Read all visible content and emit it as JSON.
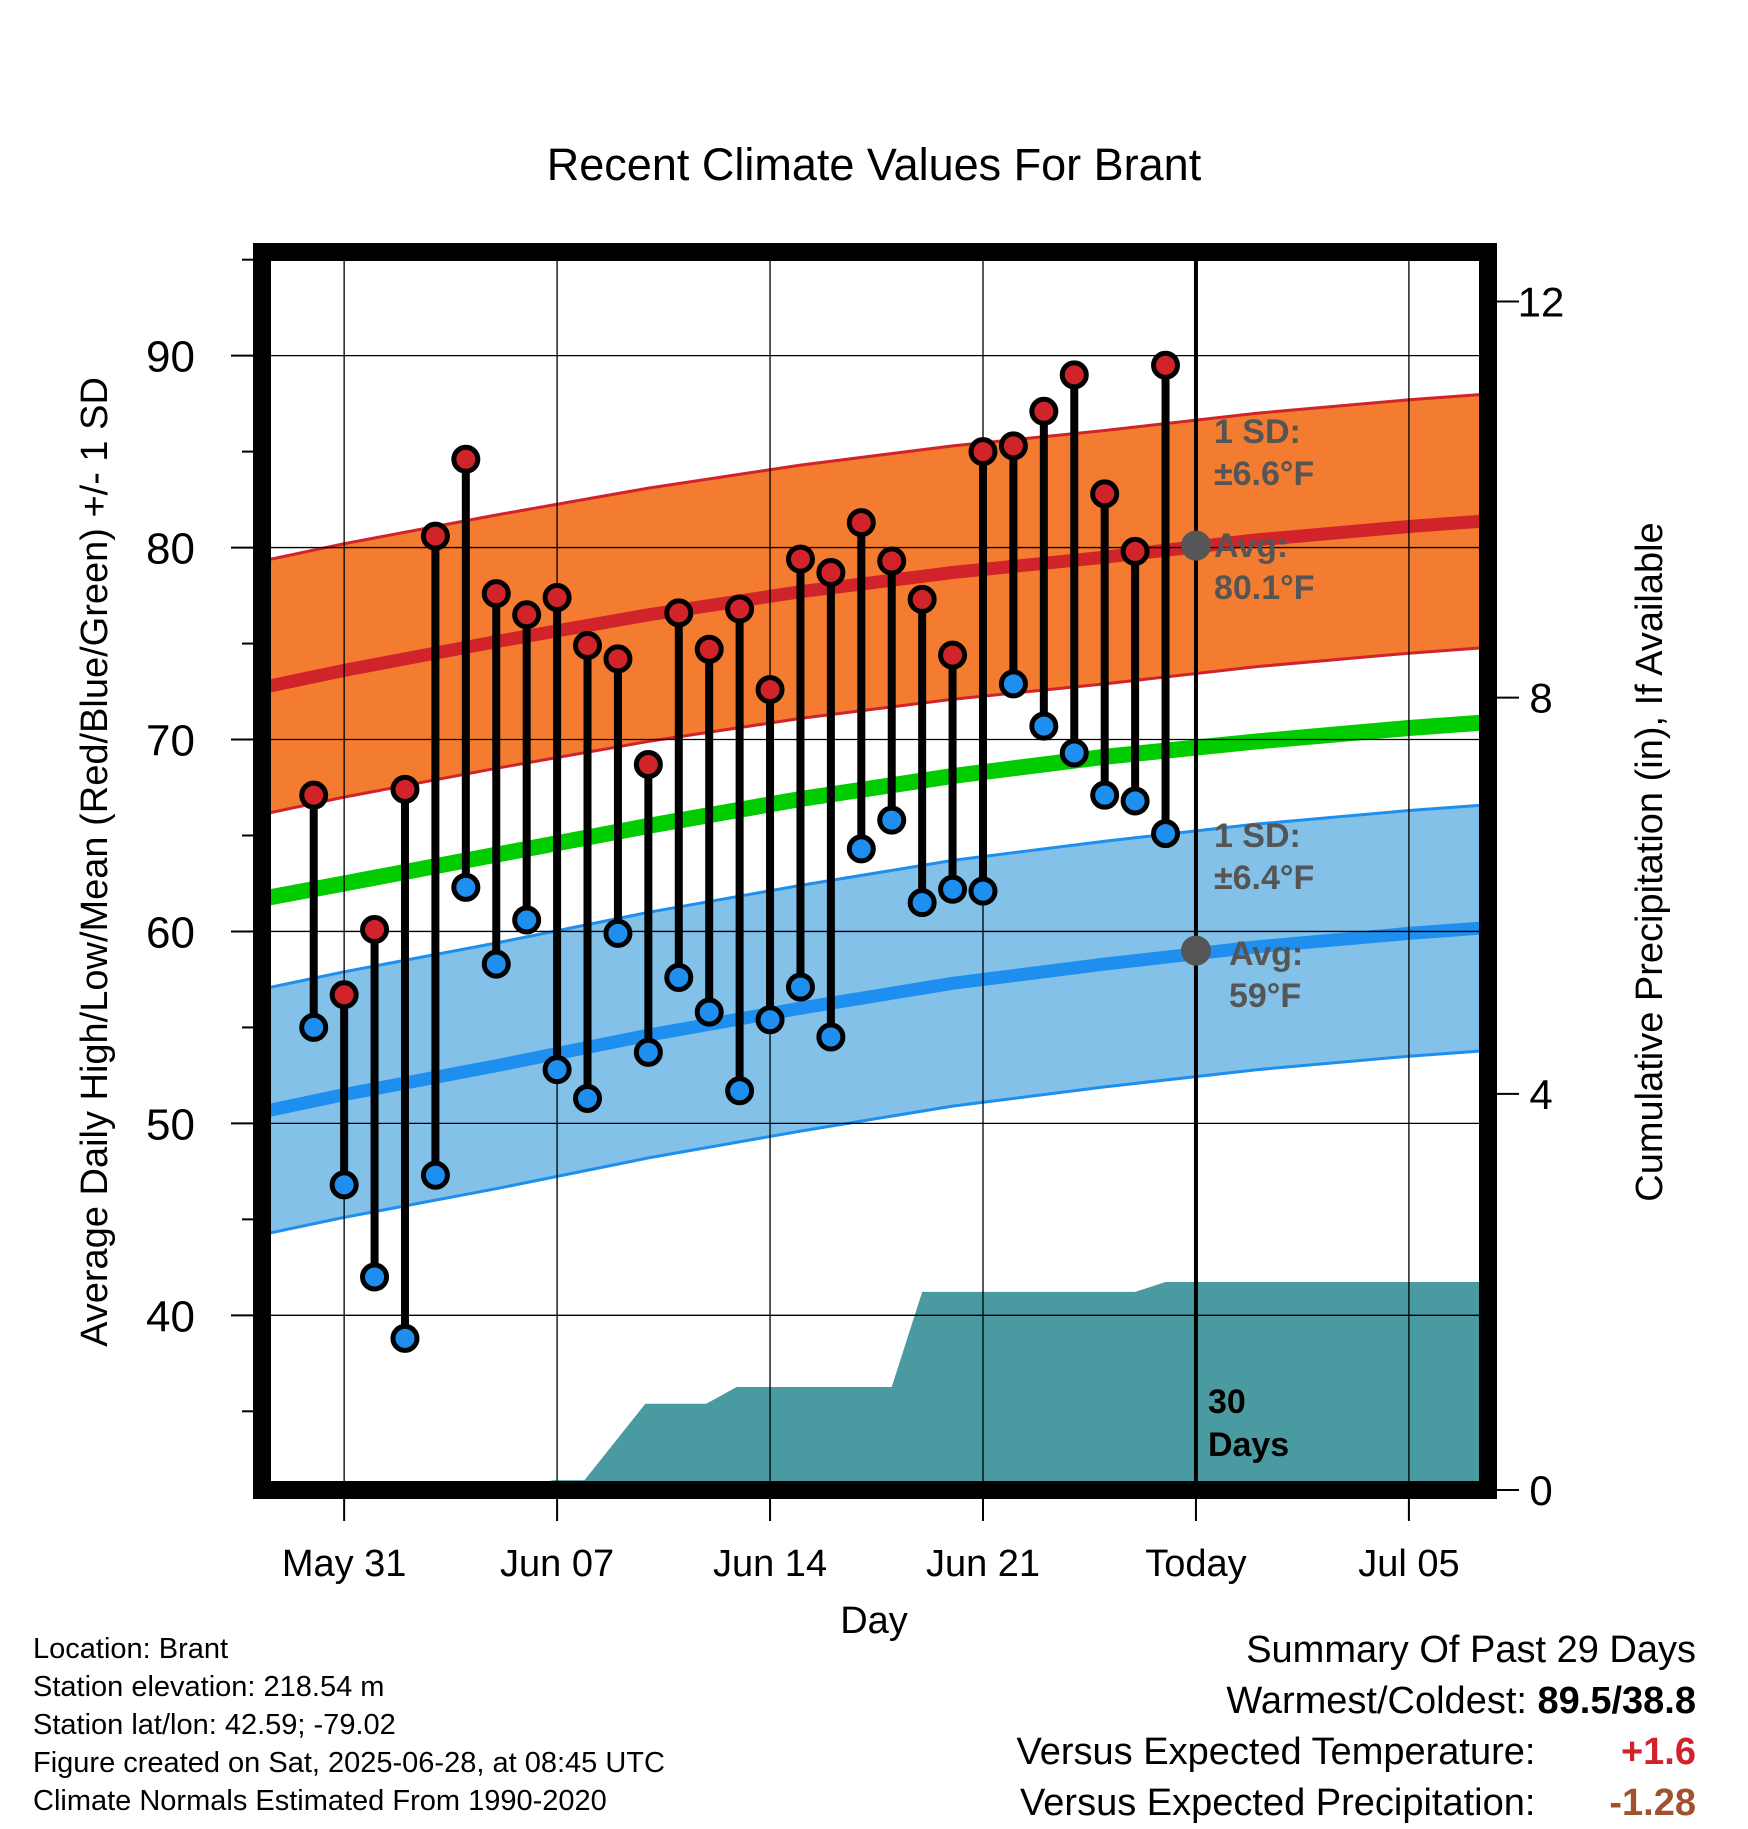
{
  "chart_data": {
    "type": "line",
    "title": "Recent Climate Values For Brant",
    "xlabel": "Day",
    "ylabel": "Average Daily High/Low/Mean (Red/Blue/Green) +/- 1 SD",
    "y2label": "Cumulative Precipitation (in), If Available",
    "x_tick_labels": [
      "May 31",
      "Jun 07",
      "Jun 14",
      "Jun 21",
      "Today",
      "Jul 05"
    ],
    "x_tick_days": [
      0,
      7,
      14,
      21,
      28,
      35
    ],
    "xlim": [
      -2.7,
      37.6
    ],
    "y_ticks": [
      40,
      50,
      60,
      70,
      80,
      90
    ],
    "ylim": [
      30.9,
      95.4
    ],
    "y2_ticks": [
      0,
      4,
      8,
      12
    ],
    "y2lim": [
      0,
      12.5
    ],
    "grid": true,
    "today_day": 28,
    "daily_days": [
      -1,
      0,
      1,
      2,
      3,
      4,
      5,
      6,
      7,
      8,
      9,
      10,
      11,
      12,
      13,
      14,
      15,
      16,
      17,
      18,
      19,
      20,
      21,
      22,
      23,
      24,
      25,
      26,
      27
    ],
    "daily_high": [
      67.1,
      56.7,
      60.1,
      67.4,
      80.6,
      84.6,
      77.6,
      76.5,
      77.4,
      74.9,
      74.2,
      68.7,
      76.6,
      74.7,
      76.8,
      72.6,
      79.4,
      78.7,
      81.3,
      79.3,
      77.3,
      74.4,
      85.0,
      85.3,
      87.1,
      89.0,
      82.8,
      79.8,
      89.5
    ],
    "daily_low": [
      55.0,
      46.8,
      42.0,
      38.8,
      47.3,
      62.3,
      58.3,
      60.6,
      52.8,
      51.3,
      59.9,
      53.7,
      57.6,
      55.8,
      51.7,
      55.4,
      57.1,
      54.5,
      64.3,
      65.8,
      61.5,
      62.2,
      62.1,
      72.9,
      70.7,
      69.3,
      67.1,
      66.8,
      65.1
    ],
    "normal_days": [
      -2.7,
      0,
      5,
      10,
      15,
      20,
      25,
      30,
      35,
      37.6
    ],
    "normal_high_avg": [
      72.7,
      73.6,
      75.1,
      76.5,
      77.7,
      78.7,
      79.5,
      80.4,
      81.1,
      81.4
    ],
    "normal_high_sd": 6.6,
    "normal_low_avg": [
      50.6,
      51.5,
      53.0,
      54.6,
      56.0,
      57.3,
      58.3,
      59.2,
      59.9,
      60.2
    ],
    "normal_low_sd": 6.4,
    "normal_mean": [
      61.7,
      62.5,
      64.0,
      65.5,
      66.9,
      68.1,
      69.1,
      69.9,
      70.6,
      70.9
    ],
    "precip_days": [
      -2.7,
      4.9,
      6.9,
      7.9,
      9.9,
      11.9,
      12.9,
      14.0,
      15.0,
      16.0,
      17.0,
      18.0,
      19.0,
      20.0,
      21.0,
      22.0,
      23.0,
      24.0,
      25.0,
      26.0,
      27.0,
      28.0,
      37.6
    ],
    "precip_cum": [
      0,
      0,
      0.1,
      0.1,
      0.87,
      0.87,
      1.04,
      1.04,
      1.04,
      1.04,
      1.04,
      1.04,
      2.0,
      2.0,
      2.0,
      2.0,
      2.0,
      2.0,
      2.0,
      2.0,
      2.1,
      2.1,
      2.1
    ],
    "series": [
      {
        "name": "High",
        "color": "#d1232a"
      },
      {
        "name": "Low",
        "color": "#1e8fef"
      },
      {
        "name": "Mean",
        "color": "#00cc00"
      }
    ],
    "annotations": {
      "high_sd_line1": "1 SD:",
      "high_sd_line2": "±6.6°F",
      "high_avg_line1": "Avg:",
      "high_avg_line2": "80.1°F",
      "high_avg_value": 80.1,
      "low_sd_line1": "1 SD:",
      "low_sd_line2": "±6.4°F",
      "low_avg_line1": "Avg:",
      "low_avg_line2": "59°F",
      "low_avg_value": 59.0,
      "precip_line1": "30",
      "precip_line2": "Days"
    },
    "colors": {
      "high_band": "#f47c30",
      "high_avg": "#d1232a",
      "low_band": "#83c1e8",
      "low_avg": "#1e8fef",
      "mean": "#00cc00",
      "precip": "#4a9aa2",
      "annotation_text": "#555555",
      "dot": "#555555"
    }
  },
  "footer": {
    "location": "Location: Brant",
    "elevation": "Station elevation: 218.54 m",
    "latlon": "Station lat/lon: 42.59; -79.02",
    "created": "Figure created on Sat, 2025-06-28, at 08:45 UTC",
    "normals": "Climate Normals Estimated From 1990-2020"
  },
  "summary": {
    "title": "Summary Of Past 29 Days",
    "warmest_label": "Warmest/Coldest:",
    "warmest_value": "89.5/38.8",
    "temp_label": "Versus Expected Temperature:",
    "temp_value": "+1.6",
    "precip_label": "Versus Expected Precipitation:",
    "precip_value": "-1.28"
  }
}
